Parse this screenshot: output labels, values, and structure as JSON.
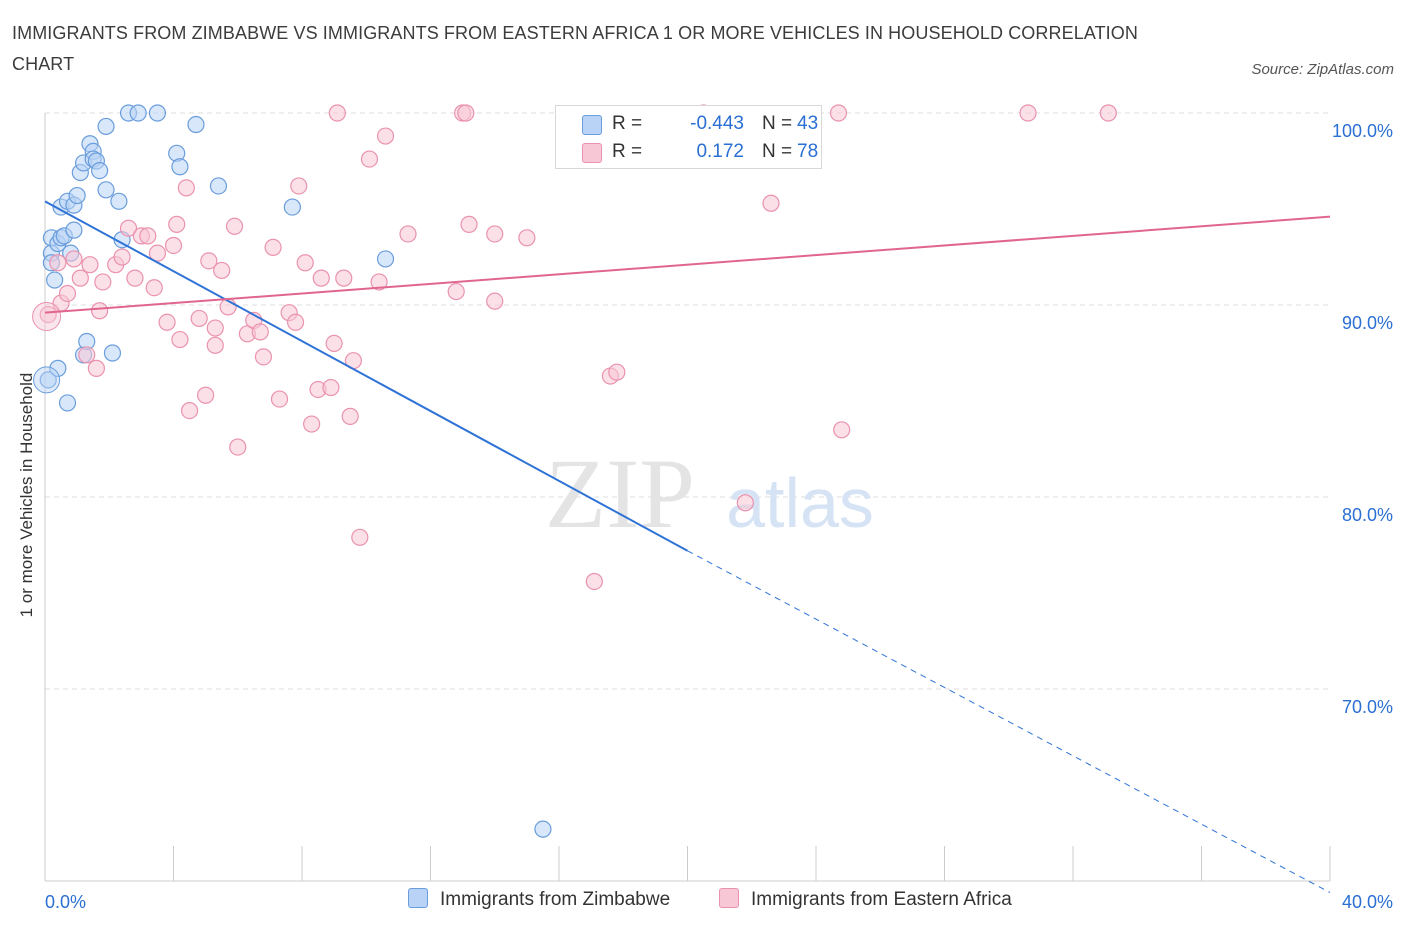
{
  "title": "IMMIGRANTS FROM ZIMBABWE VS IMMIGRANTS FROM EASTERN AFRICA 1 OR MORE VEHICLES IN HOUSEHOLD CORRELATION CHART",
  "source": "Source: ZipAtlas.com",
  "watermark": {
    "zip": "ZIP",
    "atlas": "atlas"
  },
  "legend": {
    "r_label": "R =",
    "n_label": "N =",
    "rows": [
      {
        "r": "-0.443",
        "n": "43"
      },
      {
        "r": "0.172",
        "n": "78"
      }
    ]
  },
  "bottom_legend": [
    "Immigrants from Zimbabwe",
    "Immigrants from Eastern Africa"
  ],
  "colors": {
    "blue_fill": "#b8d3f5",
    "blue_stroke": "#6a9ddc",
    "blue_line": "#2f73d6",
    "pink_fill": "#f7c7d6",
    "pink_stroke": "#ea92ae",
    "pink_line": "#e0668f",
    "axis_text": "#2a6fd3",
    "grid": "#dedede"
  },
  "chart_data": {
    "type": "scatter",
    "ylabel": "1 or more Vehicles in Household",
    "xlim": [
      0,
      40
    ],
    "ylim": [
      60,
      100
    ],
    "x_tick_labels": [
      {
        "value": 0,
        "label": "0.0%"
      },
      {
        "value": 40,
        "label": "40.0%"
      }
    ],
    "y_tick_labels": [
      {
        "value": 100,
        "label": "100.0%"
      },
      {
        "value": 90,
        "label": "90.0%"
      },
      {
        "value": 80,
        "label": "80.0%"
      },
      {
        "value": 70,
        "label": "70.0%"
      }
    ],
    "series": [
      {
        "name": "Immigrants from Zimbabwe",
        "r": -0.443,
        "n": 43,
        "trend": {
          "x": [
            0,
            20
          ],
          "y": [
            95.4,
            77.2
          ],
          "dash_to": [
            40,
            59.4
          ]
        },
        "points": [
          [
            0.1,
            86.1
          ],
          [
            0.2,
            92.7
          ],
          [
            0.2,
            92.2
          ],
          [
            0.2,
            93.5
          ],
          [
            0.3,
            91.3
          ],
          [
            0.4,
            93.2
          ],
          [
            0.4,
            86.7
          ],
          [
            0.5,
            95.1
          ],
          [
            0.5,
            93.5
          ],
          [
            0.6,
            93.6
          ],
          [
            0.7,
            84.9
          ],
          [
            0.7,
            95.4
          ],
          [
            0.8,
            92.7
          ],
          [
            0.9,
            95.2
          ],
          [
            0.9,
            93.9
          ],
          [
            1.0,
            95.7
          ],
          [
            1.1,
            96.9
          ],
          [
            1.2,
            97.4
          ],
          [
            1.2,
            87.4
          ],
          [
            1.3,
            88.1
          ],
          [
            1.4,
            98.4
          ],
          [
            1.5,
            98.0
          ],
          [
            1.5,
            97.6
          ],
          [
            1.6,
            97.5
          ],
          [
            1.7,
            97.0
          ],
          [
            1.9,
            99.3
          ],
          [
            1.9,
            96.0
          ],
          [
            2.1,
            87.5
          ],
          [
            2.3,
            95.4
          ],
          [
            2.4,
            93.4
          ],
          [
            2.6,
            100.0
          ],
          [
            2.9,
            100.0
          ],
          [
            3.5,
            100.0
          ],
          [
            4.1,
            97.9
          ],
          [
            4.2,
            97.2
          ],
          [
            4.7,
            99.4
          ],
          [
            5.4,
            96.2
          ],
          [
            7.7,
            95.1
          ],
          [
            10.6,
            92.4
          ],
          [
            15.5,
            62.7
          ]
        ]
      },
      {
        "name": "Immigrants from Eastern Africa",
        "r": 0.172,
        "n": 78,
        "trend": {
          "x": [
            0,
            40
          ],
          "y": [
            89.6,
            94.6
          ]
        },
        "points": [
          [
            0.1,
            89.5
          ],
          [
            0.4,
            92.2
          ],
          [
            0.5,
            90.1
          ],
          [
            0.7,
            90.6
          ],
          [
            0.9,
            92.4
          ],
          [
            1.1,
            91.4
          ],
          [
            1.3,
            87.4
          ],
          [
            1.4,
            92.1
          ],
          [
            1.6,
            86.7
          ],
          [
            1.7,
            89.7
          ],
          [
            1.8,
            91.2
          ],
          [
            2.2,
            92.1
          ],
          [
            2.4,
            92.5
          ],
          [
            2.6,
            94.0
          ],
          [
            2.8,
            91.4
          ],
          [
            3.0,
            93.6
          ],
          [
            3.2,
            93.6
          ],
          [
            3.4,
            90.9
          ],
          [
            3.5,
            92.7
          ],
          [
            3.8,
            89.1
          ],
          [
            4.0,
            93.1
          ],
          [
            4.1,
            94.2
          ],
          [
            4.2,
            88.2
          ],
          [
            4.4,
            96.1
          ],
          [
            4.5,
            84.5
          ],
          [
            4.8,
            89.3
          ],
          [
            5.0,
            85.3
          ],
          [
            5.1,
            92.3
          ],
          [
            5.3,
            88.8
          ],
          [
            5.3,
            87.9
          ],
          [
            5.5,
            91.8
          ],
          [
            5.7,
            89.9
          ],
          [
            5.9,
            94.1
          ],
          [
            6.0,
            82.6
          ],
          [
            6.3,
            88.5
          ],
          [
            6.5,
            89.2
          ],
          [
            6.7,
            88.6
          ],
          [
            6.8,
            87.3
          ],
          [
            7.1,
            93.0
          ],
          [
            7.3,
            85.1
          ],
          [
            7.6,
            89.6
          ],
          [
            7.8,
            89.1
          ],
          [
            7.9,
            96.2
          ],
          [
            8.1,
            92.2
          ],
          [
            8.3,
            83.8
          ],
          [
            8.5,
            85.6
          ],
          [
            8.6,
            91.4
          ],
          [
            8.9,
            85.7
          ],
          [
            9.0,
            88.0
          ],
          [
            9.1,
            100.0
          ],
          [
            9.3,
            91.4
          ],
          [
            9.5,
            84.2
          ],
          [
            9.6,
            87.1
          ],
          [
            9.8,
            77.9
          ],
          [
            10.1,
            97.6
          ],
          [
            10.4,
            91.2
          ],
          [
            10.6,
            98.8
          ],
          [
            11.3,
            93.7
          ],
          [
            12.8,
            90.7
          ],
          [
            13.0,
            100.0
          ],
          [
            13.1,
            100.0
          ],
          [
            13.2,
            94.2
          ],
          [
            14.0,
            93.7
          ],
          [
            14.0,
            90.2
          ],
          [
            15.0,
            93.5
          ],
          [
            17.1,
            75.6
          ],
          [
            17.6,
            86.3
          ],
          [
            17.8,
            86.5
          ],
          [
            20.5,
            100.0
          ],
          [
            21.8,
            79.7
          ],
          [
            22.6,
            95.3
          ],
          [
            24.7,
            100.0
          ],
          [
            24.8,
            83.5
          ],
          [
            30.6,
            100.0
          ],
          [
            33.1,
            100.0
          ]
        ]
      }
    ],
    "grid": true,
    "legend_placement": "top-center"
  }
}
